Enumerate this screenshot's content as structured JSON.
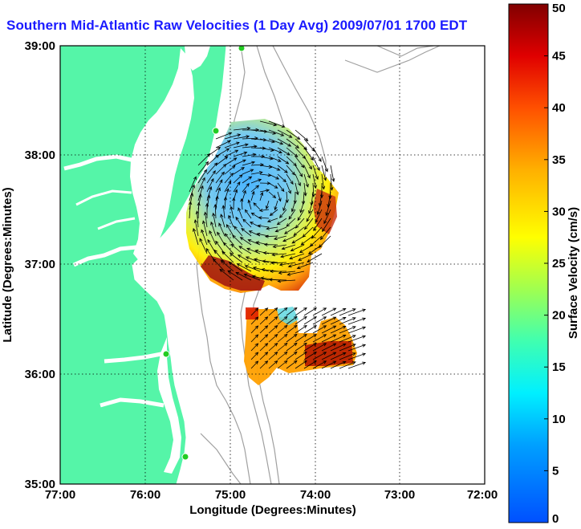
{
  "title": "Southern Mid-Atlantic Raw Velocities (1 Day Avg) 2009/07/01 1700 EDT",
  "xlabel": "Longitude (Degrees:Minutes)",
  "ylabel": "Latitude (Degrees:Minutes)",
  "colorbar_label": "Surface Velocity (cm/s)",
  "x_ticks": [
    "77:00",
    "76:00",
    "75:00",
    "74:00",
    "73:00",
    "72:00"
  ],
  "y_ticks": [
    "39:00",
    "38:00",
    "37:00",
    "36:00",
    "35:00"
  ],
  "colorbar_ticks": [
    "0",
    "5",
    "10",
    "15",
    "20",
    "25",
    "30",
    "35",
    "40",
    "45",
    "50"
  ],
  "colors": {
    "land": "#55f5a8",
    "ocean": "#ffffff",
    "bathymetry": "#a0a0a0",
    "vectors": "#000000",
    "stations": "#22cc22",
    "title": "#1a1aff"
  },
  "chart_data": {
    "type": "heatmap",
    "x_range_deg": [
      -77,
      -72
    ],
    "y_range_deg": [
      35,
      39
    ],
    "colorbar_range": [
      0,
      50
    ],
    "colormap": "jet",
    "grid": true
  }
}
